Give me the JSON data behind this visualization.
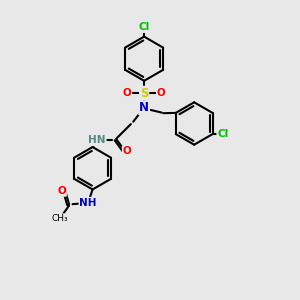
{
  "bg_color": "#e8e8e8",
  "bond_color": "#000000",
  "atom_colors": {
    "Cl_green": "#00bb00",
    "S": "#cccc00",
    "O": "#ff0000",
    "N": "#0000cc",
    "NH": "#558888"
  },
  "line_width": 1.5
}
